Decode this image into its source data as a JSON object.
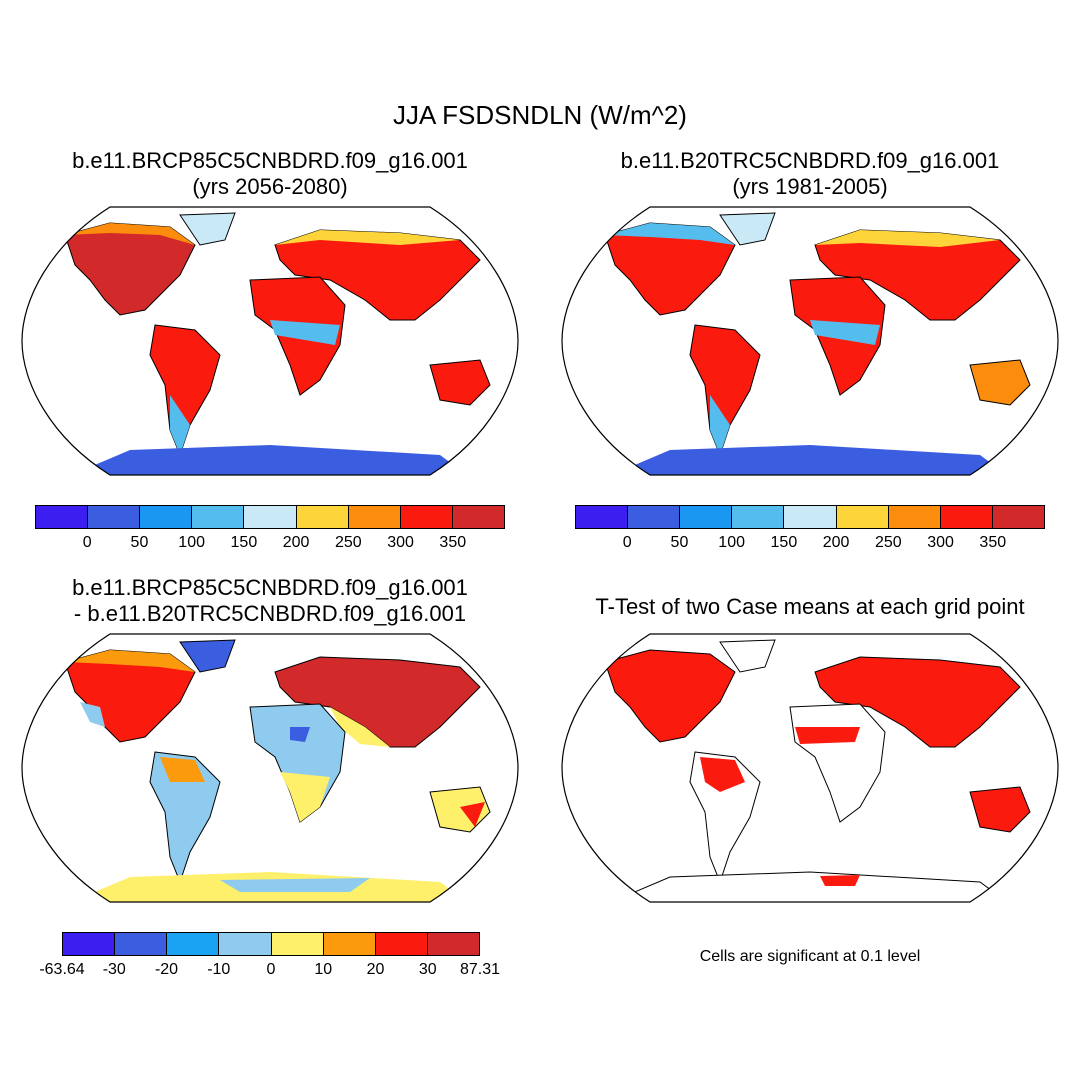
{
  "main_title": "JJA FSDSNDLN (W/m^2)",
  "panels": [
    {
      "line1": "b.e11.BRCP85C5CNBDRD.f09_g16.001",
      "line2": "(yrs 2056-2080)"
    },
    {
      "line1": "b.e11.B20TRC5CNBDRD.f09_g16.001",
      "line2": "(yrs 1981-2005)"
    },
    {
      "line1": "b.e11.BRCP85C5CNBDRD.f09_g16.001",
      "line2": "- b.e11.B20TRC5CNBDRD.f09_g16.001"
    },
    {
      "line1": "T-Test of two Case means at each grid point",
      "line2": ""
    }
  ],
  "colorbars": {
    "absolute": {
      "colors": [
        "#3c1ff0",
        "#3b5ee0",
        "#1a97f0",
        "#55bdee",
        "#c9e9f7",
        "#fdd43a",
        "#fb8c0c",
        "#fb1a0e",
        "#d22a2a"
      ],
      "labels": [
        "0",
        "50",
        "100",
        "150",
        "200",
        "250",
        "300",
        "350"
      ]
    },
    "difference": {
      "colors": [
        "#3c1ff0",
        "#3b5ee0",
        "#1aa3f2",
        "#8ecbee",
        "#fef06a",
        "#fb9a0c",
        "#fb1a0e",
        "#d22a2a"
      ],
      "labels": [
        "-63.64",
        "-30",
        "-20",
        "-10",
        "0",
        "10",
        "20",
        "30",
        "87.31"
      ]
    }
  },
  "significance_note": "Cells are significant at 0.1 level"
}
